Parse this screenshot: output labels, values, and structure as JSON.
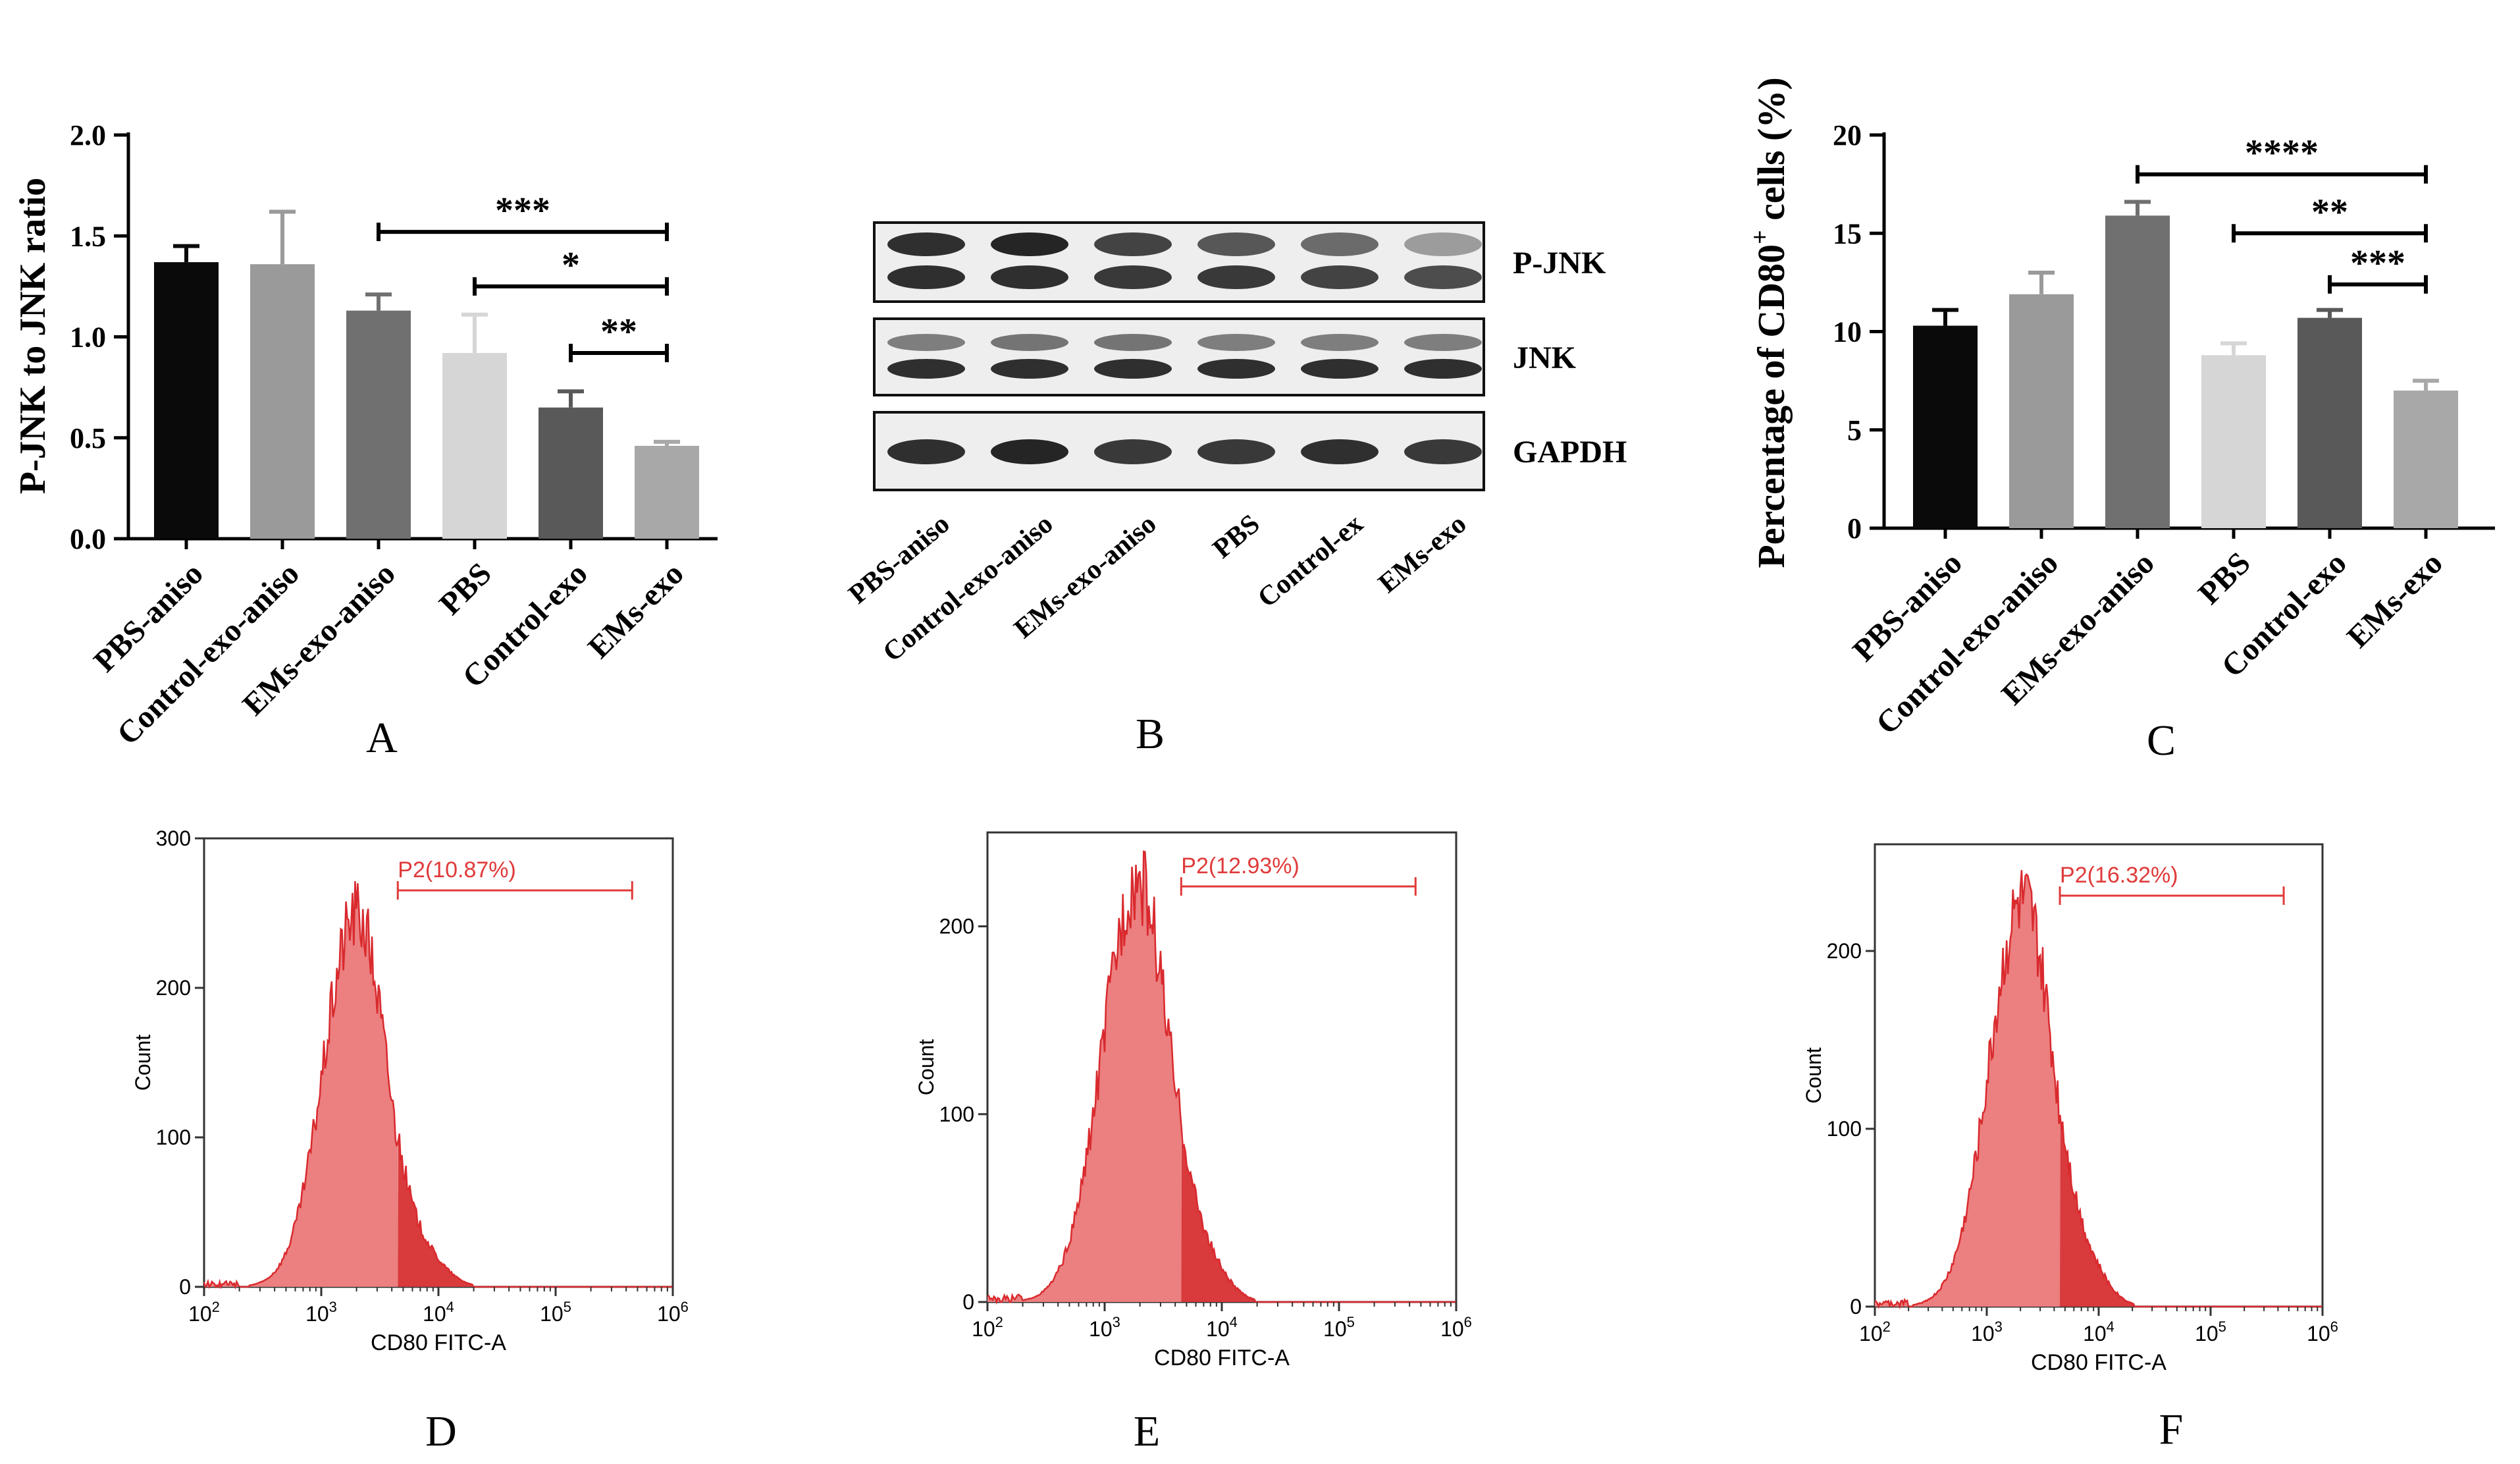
{
  "chart_data": [
    {
      "panel": "A",
      "type": "bar",
      "title": "",
      "xlabel": "",
      "ylabel": "P-JNK to JNK ratio",
      "ylim": [
        0,
        2.0
      ],
      "yticks": [
        0.0,
        0.5,
        1.0,
        1.5,
        2.0
      ],
      "ytick_labels": [
        "0.0",
        "0.5",
        "1.0",
        "1.5",
        "2.0"
      ],
      "categories": [
        "PBS-aniso",
        "Control-exo-aniso",
        "EMs-exo-aniso",
        "PBS",
        "Control-exo",
        "EMs-exo"
      ],
      "values": [
        1.37,
        1.36,
        1.13,
        0.92,
        0.65,
        0.46
      ],
      "errors": [
        0.08,
        0.26,
        0.08,
        0.19,
        0.08,
        0.02
      ],
      "bar_colors": [
        "#0a0a0a",
        "#9a9a9a",
        "#707070",
        "#d6d6d6",
        "#595959",
        "#a8a8a8"
      ],
      "significance": [
        {
          "from": "EMs-exo-aniso",
          "to": "EMs-exo",
          "label": "***",
          "y": 1.52
        },
        {
          "from": "PBS",
          "to": "EMs-exo",
          "label": "*",
          "y": 1.25
        },
        {
          "from": "Control-exo",
          "to": "EMs-exo",
          "label": "**",
          "y": 0.92
        }
      ]
    },
    {
      "panel": "B",
      "type": "western_blot",
      "lanes": [
        "PBS-aniso",
        "Control-exo-aniso",
        "EMs-exo-aniso",
        "PBS",
        "Control-ex",
        "EMs-exo"
      ],
      "bands": [
        {
          "name": "P-JNK",
          "upper_intensity": [
            0.95,
            1.0,
            0.85,
            0.75,
            0.65,
            0.4
          ],
          "lower_intensity": [
            0.95,
            0.95,
            0.9,
            0.9,
            0.85,
            0.8
          ]
        },
        {
          "name": "JNK",
          "upper_intensity": [
            0.55,
            0.6,
            0.6,
            0.55,
            0.55,
            0.55
          ],
          "lower_intensity": [
            0.95,
            0.95,
            0.95,
            0.95,
            0.95,
            0.95
          ]
        },
        {
          "name": "GAPDH",
          "upper_intensity": [
            0.95,
            1.0,
            0.9,
            0.9,
            0.95,
            0.9
          ],
          "lower_intensity": []
        }
      ]
    },
    {
      "panel": "C",
      "type": "bar",
      "title": "",
      "xlabel": "",
      "ylabel": "Percentage of CD80",
      "ylabel_superscript": "+",
      "ylabel_suffix": " cells (%)",
      "ylim": [
        0,
        20
      ],
      "yticks": [
        0,
        5,
        10,
        15,
        20
      ],
      "ytick_labels": [
        "0",
        "5",
        "10",
        "15",
        "20"
      ],
      "categories": [
        "PBS-aniso",
        "Control-exo-aniso",
        "EMs-exo-aniso",
        "PBS",
        "Control-exo",
        "EMs-exo"
      ],
      "values": [
        10.3,
        11.9,
        15.9,
        8.8,
        10.7,
        7.0
      ],
      "errors": [
        0.8,
        1.1,
        0.7,
        0.6,
        0.4,
        0.5
      ],
      "bar_colors": [
        "#0a0a0a",
        "#9a9a9a",
        "#707070",
        "#d6d6d6",
        "#595959",
        "#a8a8a8"
      ],
      "significance": [
        {
          "from": "EMs-exo-aniso",
          "to": "EMs-exo",
          "label": "****",
          "y": 18.0
        },
        {
          "from": "PBS",
          "to": "EMs-exo",
          "label": "**",
          "y": 15.0
        },
        {
          "from": "Control-exo",
          "to": "EMs-exo",
          "label": "***",
          "y": 12.4
        }
      ]
    },
    {
      "panel": "D",
      "type": "area",
      "subtype": "flow-cytometry-histogram",
      "xlabel": "CD80 FITC-A",
      "ylabel": "Count",
      "xscale": "log",
      "xlim": [
        100,
        1000000
      ],
      "xtick_exponents": [
        "2",
        "3",
        "4",
        "5",
        "6"
      ],
      "ylim": [
        0,
        300
      ],
      "yticks": [
        0,
        100,
        200,
        300
      ],
      "gate": {
        "label": "P2(10.87%)",
        "start": 4500,
        "end": 450000
      },
      "peak_center_log": 3.3,
      "peak_sigma": 0.27,
      "peak_height": 250
    },
    {
      "panel": "E",
      "type": "area",
      "subtype": "flow-cytometry-histogram",
      "xlabel": "CD80 FITC-A",
      "ylabel": "Count",
      "xscale": "log",
      "xlim": [
        100,
        1000000
      ],
      "xtick_exponents": [
        "2",
        "3",
        "4",
        "5",
        "6"
      ],
      "ylim": [
        0,
        250
      ],
      "yticks": [
        0,
        100,
        200
      ],
      "gate": {
        "label": "P2(12.93%)",
        "start": 4500,
        "end": 450000
      },
      "peak_center_log": 3.28,
      "peak_sigma": 0.29,
      "peak_height": 225
    },
    {
      "panel": "F",
      "type": "area",
      "subtype": "flow-cytometry-histogram",
      "xlabel": "CD80 FITC-A",
      "ylabel": "Count",
      "xscale": "log",
      "xlim": [
        100,
        1000000
      ],
      "xtick_exponents": [
        "2",
        "3",
        "4",
        "5",
        "6"
      ],
      "ylim": [
        0,
        260
      ],
      "yticks": [
        0,
        100,
        200
      ],
      "gate": {
        "label": "P2(16.32%)",
        "start": 4500,
        "end": 450000
      },
      "peak_center_log": 3.32,
      "peak_sigma": 0.29,
      "peak_height": 228
    }
  ],
  "panel_letters": [
    "A",
    "B",
    "C",
    "D",
    "E",
    "F"
  ]
}
